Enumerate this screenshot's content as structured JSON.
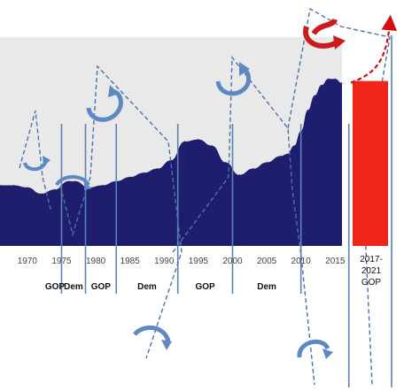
{
  "chart_data": {
    "type": "area",
    "title": "",
    "xlabel": "",
    "ylabel": "",
    "xlim": [
      1966,
      2016
    ],
    "ylim": [
      0,
      100
    ],
    "grid": false,
    "colors": {
      "area": "#1f1d6e",
      "plot_bg": "#e9e9e9",
      "projection_bar": "#f02418",
      "projection_arrow": "#d01010",
      "divider": "#5b83b8",
      "dashed": "#4d72ac",
      "curl_arrow": "#5e88c4",
      "curl_arrow_red": "#cc1b1b"
    },
    "x_ticks": [
      "1970",
      "1975",
      "1980",
      "1985",
      "1990",
      "1995",
      "2000",
      "2005",
      "2010",
      "2015"
    ],
    "series": [
      {
        "x": [
          1966,
          1968,
          1970,
          1972,
          1974,
          1976,
          1977,
          1979,
          1981,
          1983,
          1985,
          1987,
          1989,
          1991,
          1993,
          1995,
          1997,
          1999,
          2001,
          2003,
          2005,
          2007,
          2008,
          2009,
          2010,
          2011,
          2012,
          2013,
          2014,
          2015,
          2016
        ],
        "values": [
          29,
          29,
          28,
          25,
          27,
          31,
          31,
          28,
          29,
          31,
          33,
          35,
          37,
          41,
          50,
          51,
          48,
          40,
          34,
          37,
          40,
          43,
          44,
          48,
          55,
          65,
          72,
          77,
          80,
          80,
          78
        ]
      }
    ],
    "projection": {
      "label": "2017-\n2021\nGOP",
      "label_lines": [
        "2017-",
        "2021",
        "GOP"
      ],
      "value": 79,
      "arrow_end_value": 107
    },
    "periods": [
      {
        "label": "GOP"
      },
      {
        "label": "Dem"
      },
      {
        "label": "GOP"
      },
      {
        "label": "Dem"
      },
      {
        "label": "GOP"
      },
      {
        "label": "Dem"
      }
    ],
    "dividers_x": [
      1975,
      1978.5,
      1983,
      1992,
      2000,
      2010,
      2017
    ]
  }
}
